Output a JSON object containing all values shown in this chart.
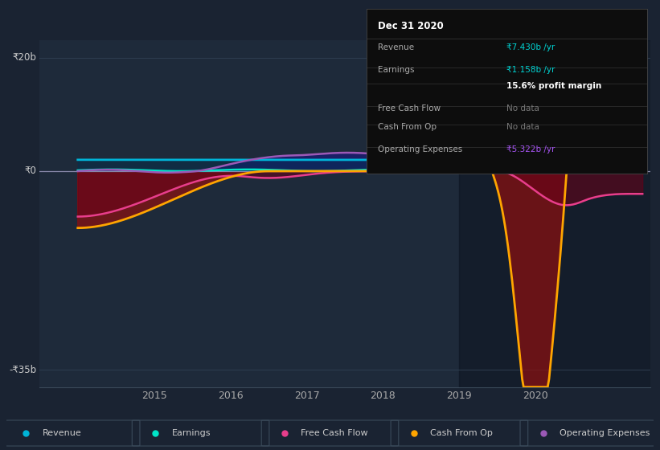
{
  "bg_color": "#1a2332",
  "plot_bg_color": "#1e2a3a",
  "y_label_20b": "₹20b",
  "y_label_0": "₹0",
  "y_label_neg35b": "-₹35b",
  "ylim": [
    -38,
    23
  ],
  "xlim": [
    2013.5,
    2021.5
  ],
  "xticks": [
    2015,
    2016,
    2017,
    2018,
    2019,
    2020
  ],
  "highlight_start": 2019.0,
  "lines": {
    "revenue": {
      "color": "#00b4d8",
      "label": "Revenue",
      "lw": 2.0
    },
    "earnings": {
      "color": "#00e5c8",
      "label": "Earnings",
      "lw": 1.8
    },
    "fcf": {
      "color": "#e83e8c",
      "label": "Free Cash Flow",
      "lw": 1.8
    },
    "cash_op": {
      "color": "#ffa500",
      "label": "Cash From Op",
      "lw": 2.0
    },
    "op_exp": {
      "color": "#9b59b6",
      "label": "Operating Expenses",
      "lw": 1.8
    }
  },
  "tooltip_title": "Dec 31 2020",
  "tooltip_rows": [
    {
      "label": "Revenue",
      "value": "₹7.430b /yr",
      "value_color": "#00d4d4",
      "bold": false
    },
    {
      "label": "Earnings",
      "value": "₹1.158b /yr",
      "value_color": "#00d4d4",
      "bold": false
    },
    {
      "label": "",
      "value": "15.6% profit margin",
      "value_color": "#ffffff",
      "bold": true
    },
    {
      "label": "Free Cash Flow",
      "value": "No data",
      "value_color": "#777777",
      "bold": false
    },
    {
      "label": "Cash From Op",
      "value": "No data",
      "value_color": "#777777",
      "bold": false
    },
    {
      "label": "Operating Expenses",
      "value": "₹5.322b /yr",
      "value_color": "#a855f7",
      "bold": false
    }
  ],
  "legend": [
    {
      "label": "Revenue",
      "color": "#00b4d8"
    },
    {
      "label": "Earnings",
      "color": "#00e5c8"
    },
    {
      "label": "Free Cash Flow",
      "color": "#e83e8c"
    },
    {
      "label": "Cash From Op",
      "color": "#ffa500"
    },
    {
      "label": "Operating Expenses",
      "color": "#9b59b6"
    }
  ]
}
